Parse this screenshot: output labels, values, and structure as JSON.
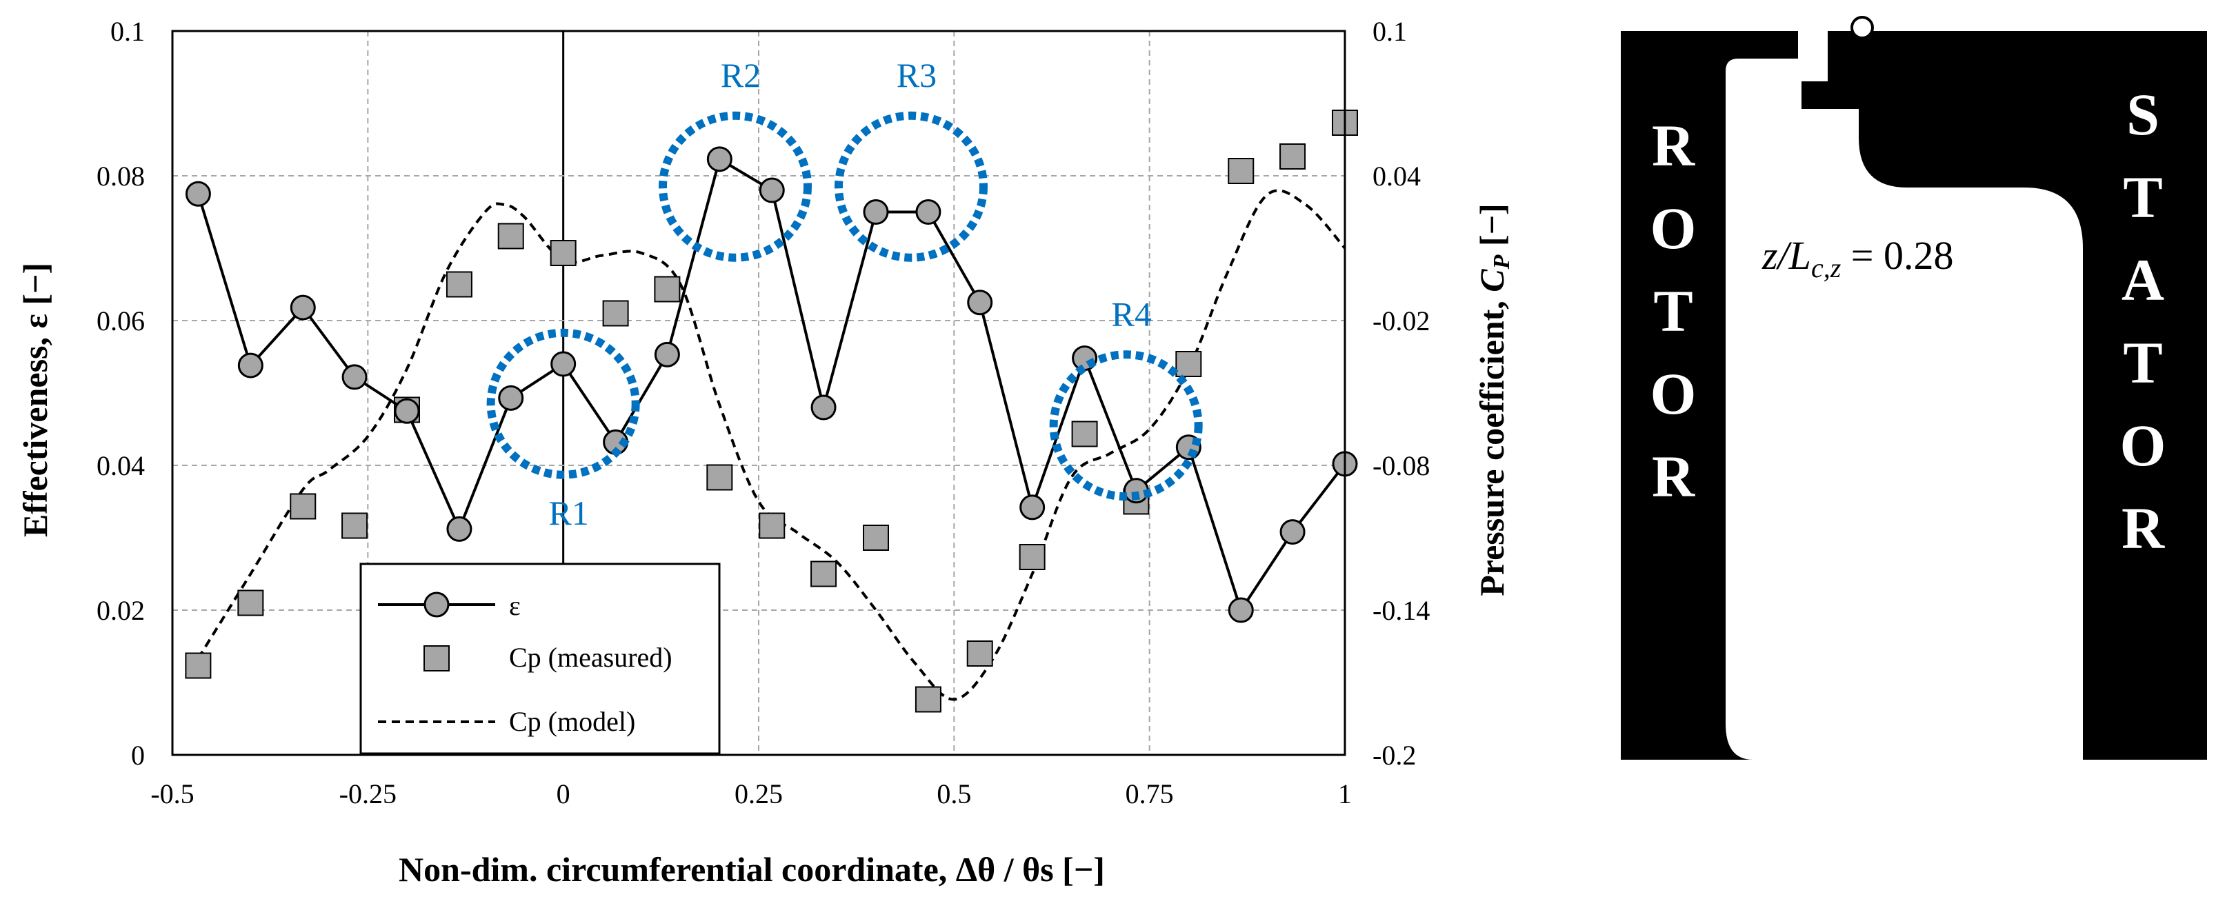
{
  "chart_data": {
    "type": "line",
    "title": "",
    "xlabel": "Non-dim. circumferential coordinate, Δθ / θs [−]",
    "ylabel_left": "Effectiveness, ε [−]",
    "ylabel_right_prefix": "Pressure  coefficient, ",
    "ylabel_right_symbol": "C",
    "ylabel_right_subscript": "P",
    "ylabel_right_suffix": " [−]",
    "xlim": [
      -0.5,
      1
    ],
    "ylim_left": [
      0,
      0.1
    ],
    "ylim_right": [
      -0.2,
      0.1
    ],
    "grid": true,
    "x_ticks": [
      "-0.5",
      "-0.25",
      "0",
      "0.25",
      "0.5",
      "0.75",
      "1"
    ],
    "y_left_ticks": [
      "0",
      "0.02",
      "0.04",
      "0.06",
      "0.08",
      "0.1"
    ],
    "y_right_ticks": [
      "-0.2",
      "-0.14",
      "-0.08",
      "-0.02",
      "0.04",
      "0.1"
    ],
    "series": [
      {
        "name": "ε",
        "axis": "left",
        "style": "line-circle",
        "x": [
          -0.467,
          -0.4,
          -0.333,
          -0.267,
          -0.2,
          -0.133,
          -0.067,
          0,
          0.067,
          0.133,
          0.2,
          0.267,
          0.333,
          0.4,
          0.467,
          0.533,
          0.6,
          0.667,
          0.733,
          0.8,
          0.867,
          0.933,
          1.0
        ],
        "values": [
          0.0775,
          0.0538,
          0.0618,
          0.0522,
          0.0475,
          0.0312,
          0.0493,
          0.054,
          0.0432,
          0.0553,
          0.0823,
          0.078,
          0.048,
          0.075,
          0.075,
          0.0625,
          0.0342,
          0.0548,
          0.0365,
          0.0425,
          0.02,
          0.0308,
          0.0402
        ]
      },
      {
        "name": "Cp (measured)",
        "axis": "right",
        "style": "square",
        "x": [
          -0.467,
          -0.4,
          -0.333,
          -0.267,
          -0.2,
          -0.133,
          -0.067,
          0,
          0.067,
          0.133,
          0.2,
          0.267,
          0.333,
          0.4,
          0.467,
          0.533,
          0.6,
          0.667,
          0.733,
          0.8,
          0.867,
          0.933,
          1.0
        ],
        "values": [
          -0.163,
          -0.137,
          -0.097,
          -0.105,
          -0.057,
          -0.005,
          0.015,
          0.008,
          -0.017,
          -0.007,
          -0.085,
          -0.105,
          -0.125,
          -0.11,
          -0.177,
          -0.158,
          -0.118,
          -0.067,
          -0.095,
          -0.038,
          0.042,
          0.048,
          0.062
        ]
      },
      {
        "name": "Cp (model)",
        "axis": "right",
        "style": "dashed",
        "x": [
          -0.467,
          -0.4,
          -0.333,
          -0.3,
          -0.25,
          -0.2,
          -0.15,
          -0.1,
          -0.075,
          -0.05,
          0,
          0.05,
          0.1,
          0.15,
          0.2,
          0.25,
          0.3,
          0.35,
          0.4,
          0.45,
          0.5,
          0.55,
          0.6,
          0.65,
          0.7,
          0.75,
          0.8,
          0.85,
          0.9,
          0.95,
          1.0
        ],
        "values": [
          -0.16,
          -0.125,
          -0.09,
          -0.082,
          -0.068,
          -0.04,
          0.0,
          0.025,
          0.028,
          0.023,
          0.005,
          0.007,
          0.008,
          -0.005,
          -0.055,
          -0.095,
          -0.108,
          -0.12,
          -0.14,
          -0.162,
          -0.177,
          -0.16,
          -0.125,
          -0.085,
          -0.075,
          -0.065,
          -0.04,
          0.0,
          0.032,
          0.028,
          0.01
        ]
      }
    ],
    "regions": [
      {
        "label": "R1",
        "x": 0.0,
        "y": 0.0485,
        "label_position": "below"
      },
      {
        "label": "R2",
        "x": 0.22,
        "y": 0.0785,
        "label_position": "above"
      },
      {
        "label": "R3",
        "x": 0.445,
        "y": 0.0785,
        "label_position": "above"
      },
      {
        "label": "R4",
        "x": 0.72,
        "y": 0.0455,
        "label_position": "above"
      }
    ],
    "legend": {
      "position": "bottom-left",
      "entries": [
        "ε",
        "Cp (measured)",
        "Cp (model)"
      ]
    }
  },
  "schematic": {
    "rotor_label": "ROTOR",
    "stator_label": "STATOR",
    "annotation_lhs": "z/L",
    "annotation_subscript": "c,z",
    "annotation_rhs": " = 0.28"
  },
  "colors": {
    "axis": "#000000",
    "grid": "#a6a6a6",
    "marker_fill": "#a6a6a6",
    "region_circle": "#0070c0",
    "region_label": "#0070c0",
    "schematic_fill": "#000000",
    "schematic_text": "#ffffff"
  }
}
